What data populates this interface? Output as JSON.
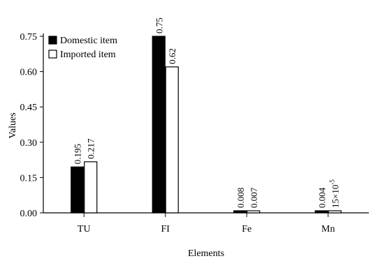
{
  "chart_data": {
    "type": "bar",
    "xlabel": "Elements",
    "ylabel": "Values",
    "ylim": [
      0,
      0.75
    ],
    "yticks": [
      "0.00",
      "0.15",
      "0.30",
      "0.45",
      "0.60",
      "0.75"
    ],
    "categories": [
      "TU",
      "FI",
      "Fe",
      "Mn"
    ],
    "legend_position": "top-left",
    "grid": false,
    "series": [
      {
        "name": "Domestic item",
        "color": "#000000",
        "values": [
          0.195,
          0.75,
          0.008,
          0.004
        ],
        "labels": [
          "0.195",
          "0.75",
          "0.008",
          "0.004"
        ]
      },
      {
        "name": "Imported item",
        "color": "#ffffff",
        "values": [
          0.217,
          0.62,
          0.007,
          1.5e-05
        ],
        "labels": [
          "0.217",
          "0.62",
          "0.007",
          "15×10"
        ],
        "label_superscripts": [
          "",
          "",
          "",
          "-5"
        ]
      }
    ]
  }
}
